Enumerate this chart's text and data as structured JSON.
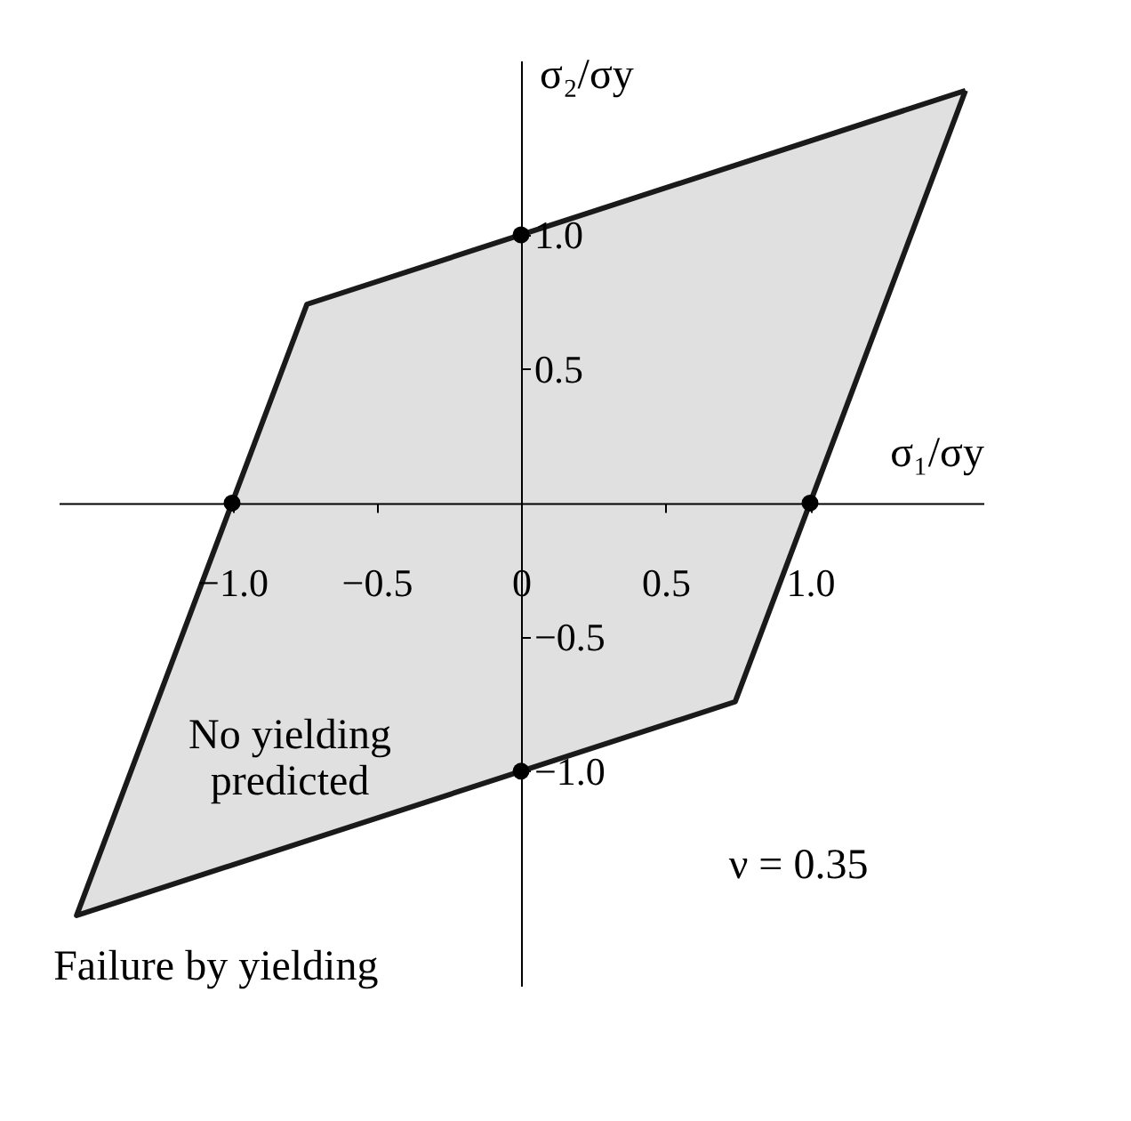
{
  "chart_data": {
    "type": "area",
    "xlabel": "σ₁/σy",
    "ylabel": "σ₂/σy",
    "xlim": [
      -1.6,
      1.6
    ],
    "ylim": [
      -1.8,
      1.65
    ],
    "xticks": [
      {
        "value": -1.0,
        "label": "−1.0"
      },
      {
        "value": -0.5,
        "label": "−0.5"
      },
      {
        "value": 0,
        "label": "0"
      },
      {
        "value": 0.5,
        "label": "0.5"
      },
      {
        "value": 1.0,
        "label": "1.0"
      }
    ],
    "yticks": [
      {
        "value": -1.0,
        "label": "−1.0"
      },
      {
        "value": -0.5,
        "label": "−0.5"
      },
      {
        "value": 0.5,
        "label": "0.5"
      },
      {
        "value": 1.0,
        "label": "1.0"
      }
    ],
    "series": [
      {
        "color": "#e0e0e0",
        "x": [
          1.538,
          -0.741,
          -1.538,
          0.741,
          1.538
        ],
        "values": [
          1.538,
          0.741,
          -1.538,
          -0.741,
          1.538
        ]
      },
      {
        "type": "scatter",
        "color": "#000000",
        "marker": "circle",
        "x": [
          1,
          -1,
          0,
          0
        ],
        "values": [
          0,
          0,
          1,
          -1
        ]
      }
    ],
    "annotations": [
      "No yielding\npredicted",
      "ν = 0.35",
      "Failure by yielding"
    ]
  }
}
